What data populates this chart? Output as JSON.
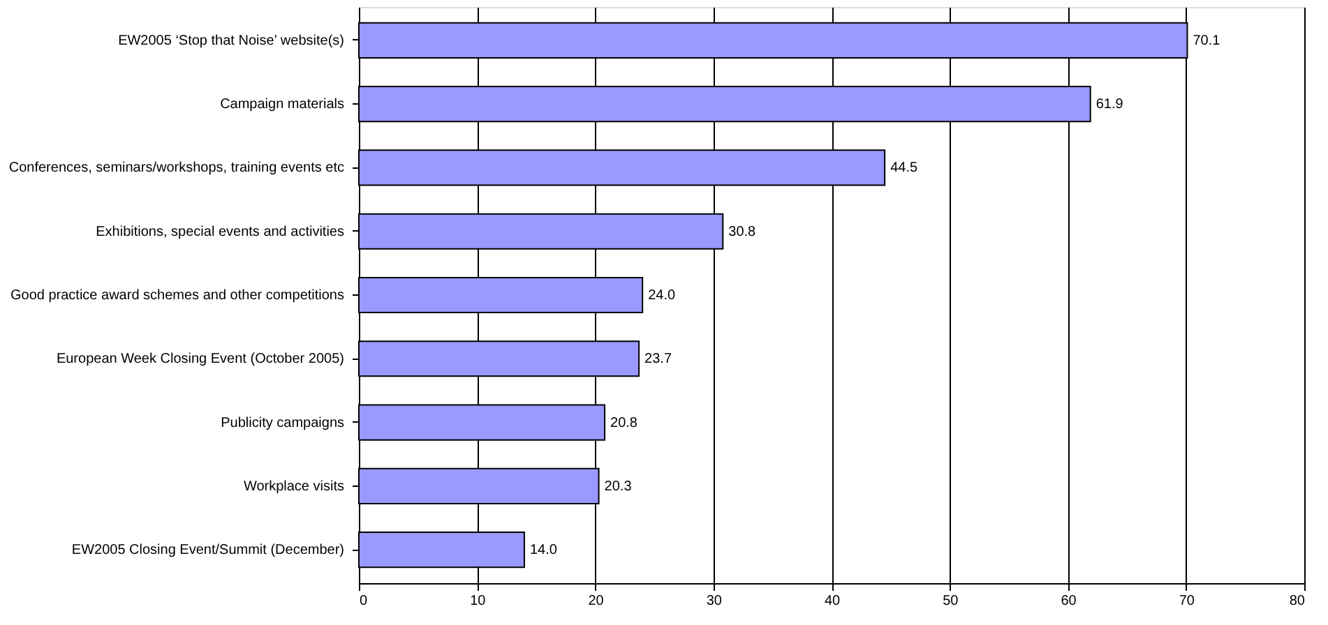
{
  "chart_data": {
    "type": "bar",
    "orientation": "horizontal",
    "categories": [
      "EW2005 ‘Stop that Noise’ website(s)",
      "Campaign materials",
      "Conferences, seminars/workshops, training events etc",
      "Exhibitions, special events and activities",
      "Good practice award schemes and other competitions",
      "European Week Closing Event (October 2005)",
      "Publicity campaigns",
      "Workplace visits",
      "EW2005 Closing Event/Summit (December)"
    ],
    "values": [
      70.1,
      61.9,
      44.5,
      30.8,
      24.0,
      23.7,
      20.8,
      20.3,
      14.0
    ],
    "color": "#9999ff",
    "xlim": [
      0,
      80
    ],
    "xticks": [
      0,
      10,
      20,
      30,
      40,
      50,
      60,
      70,
      80
    ],
    "value_labels": [
      "70.1",
      "61.9",
      "44.5",
      "30.8",
      "24.0",
      "23.7",
      "20.8",
      "20.3",
      "14.0"
    ],
    "grid": "x"
  }
}
